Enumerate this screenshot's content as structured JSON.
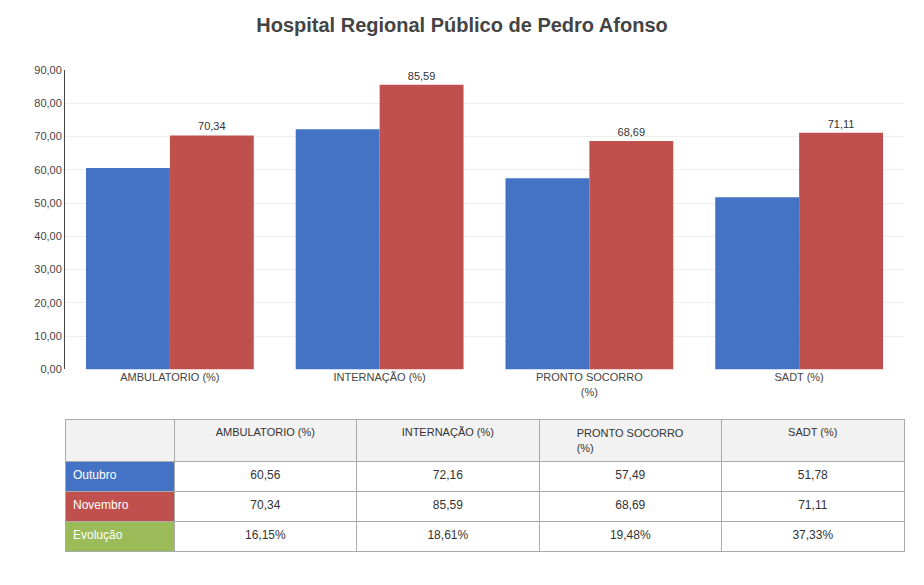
{
  "chart_data": {
    "type": "bar",
    "title": "Hospital Regional Público de Pedro Afonso",
    "categories": [
      "AMBULATORIO (%)",
      "INTERNAÇÃO (%)",
      "PRONTO SOCORRO\n(%)",
      "SADT (%)"
    ],
    "series": [
      {
        "name": "Outubro",
        "color": "#4472C4",
        "values": [
          60.56,
          72.16,
          57.49,
          51.78
        ]
      },
      {
        "name": "Novembro",
        "color": "#C0504D",
        "values": [
          70.34,
          85.59,
          68.69,
          71.11
        ],
        "data_labels": true,
        "value_labels": [
          "70,34",
          "85,59",
          "68,69",
          "71,11"
        ]
      }
    ],
    "ylim": [
      0,
      90
    ],
    "yticks": [
      {
        "value": 0,
        "label": "0,00"
      },
      {
        "value": 10,
        "label": "10,00"
      },
      {
        "value": 20,
        "label": "20,00"
      },
      {
        "value": 30,
        "label": "30,00"
      },
      {
        "value": 40,
        "label": "40,00"
      },
      {
        "value": 50,
        "label": "50,00"
      },
      {
        "value": 60,
        "label": "60,00"
      },
      {
        "value": 70,
        "label": "70,00"
      },
      {
        "value": 80,
        "label": "80,00"
      },
      {
        "value": 90,
        "label": "90,00"
      }
    ],
    "grid": true,
    "table": {
      "rows": [
        {
          "name": "Outubro",
          "color": "#4472C4",
          "cells": [
            "60,56",
            "72,16",
            "57,49",
            "51,78"
          ]
        },
        {
          "name": "Novembro",
          "color": "#C0504D",
          "cells": [
            "70,34",
            "85,59",
            "68,69",
            "71,11"
          ]
        },
        {
          "name": "Evolução",
          "color": "#9BBB59",
          "cells": [
            "16,15%",
            "18,61%",
            "19,48%",
            "37,33%"
          ]
        }
      ]
    }
  }
}
